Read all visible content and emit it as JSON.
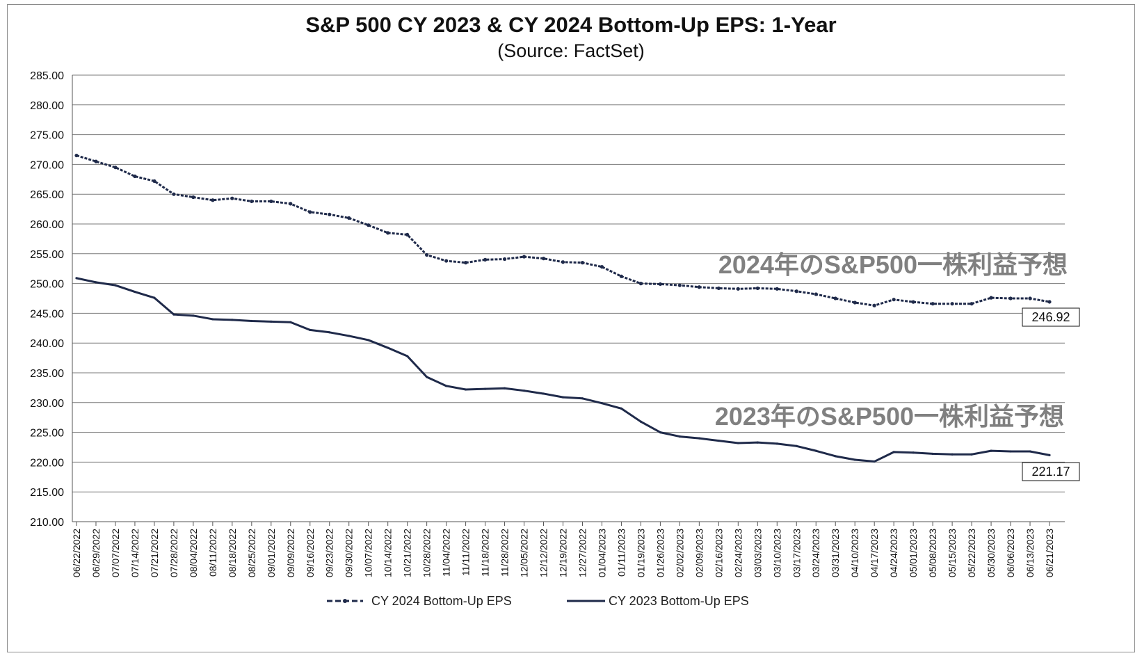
{
  "chart_data": {
    "type": "line",
    "title": "S&P 500 CY 2023 & CY 2024 Bottom-Up  EPS: 1-Year",
    "subtitle": "(Source: FactSet)",
    "ylim": [
      210,
      285
    ],
    "yticks": [
      "210.00",
      "215.00",
      "220.00",
      "225.00",
      "230.00",
      "235.00",
      "240.00",
      "245.00",
      "250.00",
      "255.00",
      "260.00",
      "265.00",
      "270.00",
      "275.00",
      "280.00",
      "285.00"
    ],
    "grid": true,
    "legend_position": "bottom-center",
    "x": [
      "06/22/2022",
      "06/29/2022",
      "07/07/2022",
      "07/14/2022",
      "07/21/2022",
      "07/28/2022",
      "08/04/2022",
      "08/11/2022",
      "08/18/2022",
      "08/25/2022",
      "09/01/2022",
      "09/09/2022",
      "09/16/2022",
      "09/23/2022",
      "09/30/2022",
      "10/07/2022",
      "10/14/2022",
      "10/21/2022",
      "10/28/2022",
      "11/04/2022",
      "11/11/2022",
      "11/18/2022",
      "11/28/2022",
      "12/05/2022",
      "12/12/2022",
      "12/19/2022",
      "12/27/2022",
      "01/04/2023",
      "01/11/2023",
      "01/19/2023",
      "01/26/2023",
      "02/02/2023",
      "02/09/2023",
      "02/16/2023",
      "02/24/2023",
      "03/03/2023",
      "03/10/2023",
      "03/17/2023",
      "03/24/2023",
      "03/31/2023",
      "04/10/2023",
      "04/17/2023",
      "04/24/2023",
      "05/01/2023",
      "05/08/2023",
      "05/15/2023",
      "05/22/2023",
      "05/30/2023",
      "06/06/2023",
      "06/13/2023",
      "06/21/2023"
    ],
    "series": [
      {
        "name": "CY 2024 Bottom-Up EPS",
        "color": "#1f2a4a",
        "style": "dashed-markers",
        "values": [
          271.5,
          270.5,
          269.5,
          268.0,
          267.2,
          265.0,
          264.5,
          264.0,
          264.3,
          263.8,
          263.8,
          263.4,
          262.0,
          261.6,
          261.0,
          259.8,
          258.5,
          258.2,
          254.8,
          253.8,
          253.5,
          254.0,
          254.1,
          254.5,
          254.2,
          253.6,
          253.5,
          252.8,
          251.2,
          250.0,
          249.9,
          249.7,
          249.4,
          249.2,
          249.1,
          249.2,
          249.1,
          248.7,
          248.2,
          247.5,
          246.8,
          246.3,
          247.3,
          246.9,
          246.6,
          246.6,
          246.6,
          247.6,
          247.5,
          247.5,
          246.92
        ]
      },
      {
        "name": "CY 2023 Bottom-Up EPS",
        "color": "#1f2a4a",
        "style": "solid",
        "values": [
          250.9,
          250.2,
          249.7,
          248.6,
          247.6,
          244.8,
          244.6,
          244.0,
          243.9,
          243.7,
          243.6,
          243.5,
          242.2,
          241.8,
          241.2,
          240.5,
          239.2,
          237.8,
          234.3,
          232.8,
          232.2,
          232.3,
          232.4,
          232.0,
          231.5,
          230.9,
          230.7,
          229.9,
          229.0,
          226.8,
          225.0,
          224.3,
          224.0,
          223.6,
          223.2,
          223.3,
          223.1,
          222.7,
          221.9,
          221.0,
          220.4,
          220.1,
          221.7,
          221.6,
          221.4,
          221.3,
          221.3,
          221.9,
          221.8,
          221.8,
          221.17
        ]
      }
    ],
    "end_labels": [
      "246.92",
      "221.17"
    ],
    "annotations": [
      "2024年のS&P500一株利益予想",
      "2023年のS&P500一株利益予想"
    ],
    "legend": [
      "CY 2024 Bottom-Up EPS",
      "CY 2023 Bottom-Up EPS"
    ]
  }
}
